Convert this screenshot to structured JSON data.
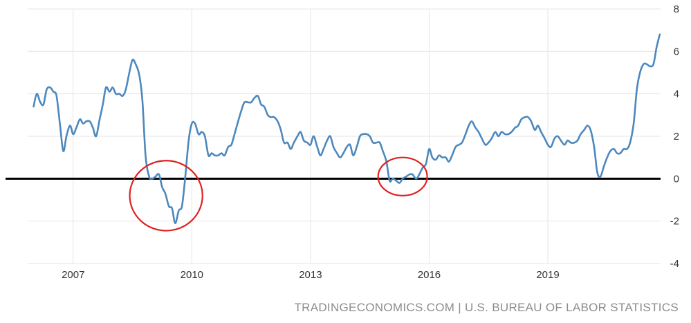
{
  "chart_data": {
    "type": "line",
    "title": "",
    "xlabel": "",
    "ylabel": "",
    "xlim": [
      2005.85,
      2021.85
    ],
    "ylim": [
      -4,
      8
    ],
    "x_ticks": [
      {
        "value": 2007,
        "label": "2007"
      },
      {
        "value": 2010,
        "label": "2010"
      },
      {
        "value": 2013,
        "label": "2013"
      },
      {
        "value": 2016,
        "label": "2016"
      },
      {
        "value": 2019,
        "label": "2019"
      }
    ],
    "y_ticks": [
      {
        "value": 8,
        "label": "8"
      },
      {
        "value": 6,
        "label": "6"
      },
      {
        "value": 4,
        "label": "4"
      },
      {
        "value": 2,
        "label": "2"
      },
      {
        "value": 0,
        "label": "0"
      },
      {
        "value": -2,
        "label": "-2"
      },
      {
        "value": -4,
        "label": "-4"
      }
    ],
    "grid": true,
    "legend": "none",
    "line_color": "#4d88bd",
    "zero_line_color": "#000000",
    "annotation_color": "#e02020",
    "series": [
      {
        "points": [
          [
            2006.0,
            3.4
          ],
          [
            2006.08,
            4.0
          ],
          [
            2006.17,
            3.6
          ],
          [
            2006.25,
            3.5
          ],
          [
            2006.33,
            4.2
          ],
          [
            2006.42,
            4.3
          ],
          [
            2006.5,
            4.1
          ],
          [
            2006.58,
            3.9
          ],
          [
            2006.67,
            2.5
          ],
          [
            2006.75,
            1.3
          ],
          [
            2006.83,
            2.0
          ],
          [
            2006.92,
            2.5
          ],
          [
            2007.0,
            2.1
          ],
          [
            2007.08,
            2.4
          ],
          [
            2007.17,
            2.8
          ],
          [
            2007.25,
            2.6
          ],
          [
            2007.33,
            2.7
          ],
          [
            2007.42,
            2.7
          ],
          [
            2007.5,
            2.4
          ],
          [
            2007.58,
            2.0
          ],
          [
            2007.67,
            2.8
          ],
          [
            2007.75,
            3.5
          ],
          [
            2007.83,
            4.3
          ],
          [
            2007.92,
            4.1
          ],
          [
            2008.0,
            4.3
          ],
          [
            2008.08,
            4.0
          ],
          [
            2008.17,
            4.0
          ],
          [
            2008.25,
            3.9
          ],
          [
            2008.33,
            4.2
          ],
          [
            2008.42,
            5.0
          ],
          [
            2008.5,
            5.6
          ],
          [
            2008.58,
            5.4
          ],
          [
            2008.67,
            4.9
          ],
          [
            2008.75,
            3.7
          ],
          [
            2008.83,
            1.1
          ],
          [
            2008.92,
            0.1
          ],
          [
            2009.0,
            0.0
          ],
          [
            2009.08,
            0.1
          ],
          [
            2009.17,
            0.2
          ],
          [
            2009.25,
            -0.4
          ],
          [
            2009.33,
            -0.7
          ],
          [
            2009.42,
            -1.3
          ],
          [
            2009.5,
            -1.4
          ],
          [
            2009.58,
            -2.1
          ],
          [
            2009.67,
            -1.5
          ],
          [
            2009.75,
            -1.3
          ],
          [
            2009.83,
            0.0
          ],
          [
            2009.92,
            1.8
          ],
          [
            2010.0,
            2.6
          ],
          [
            2010.08,
            2.6
          ],
          [
            2010.17,
            2.1
          ],
          [
            2010.25,
            2.2
          ],
          [
            2010.33,
            2.0
          ],
          [
            2010.42,
            1.1
          ],
          [
            2010.5,
            1.2
          ],
          [
            2010.58,
            1.1
          ],
          [
            2010.67,
            1.1
          ],
          [
            2010.75,
            1.2
          ],
          [
            2010.83,
            1.1
          ],
          [
            2010.92,
            1.5
          ],
          [
            2011.0,
            1.6
          ],
          [
            2011.08,
            2.1
          ],
          [
            2011.17,
            2.7
          ],
          [
            2011.25,
            3.2
          ],
          [
            2011.33,
            3.6
          ],
          [
            2011.42,
            3.6
          ],
          [
            2011.5,
            3.6
          ],
          [
            2011.58,
            3.8
          ],
          [
            2011.67,
            3.9
          ],
          [
            2011.75,
            3.5
          ],
          [
            2011.83,
            3.4
          ],
          [
            2011.92,
            3.0
          ],
          [
            2012.0,
            2.9
          ],
          [
            2012.08,
            2.9
          ],
          [
            2012.17,
            2.7
          ],
          [
            2012.25,
            2.3
          ],
          [
            2012.33,
            1.7
          ],
          [
            2012.42,
            1.7
          ],
          [
            2012.5,
            1.4
          ],
          [
            2012.58,
            1.7
          ],
          [
            2012.67,
            2.0
          ],
          [
            2012.75,
            2.2
          ],
          [
            2012.83,
            1.8
          ],
          [
            2012.92,
            1.7
          ],
          [
            2013.0,
            1.6
          ],
          [
            2013.08,
            2.0
          ],
          [
            2013.17,
            1.5
          ],
          [
            2013.25,
            1.1
          ],
          [
            2013.33,
            1.4
          ],
          [
            2013.42,
            1.8
          ],
          [
            2013.5,
            2.0
          ],
          [
            2013.58,
            1.5
          ],
          [
            2013.67,
            1.2
          ],
          [
            2013.75,
            1.0
          ],
          [
            2013.83,
            1.2
          ],
          [
            2013.92,
            1.5
          ],
          [
            2014.0,
            1.6
          ],
          [
            2014.08,
            1.1
          ],
          [
            2014.17,
            1.5
          ],
          [
            2014.25,
            2.0
          ],
          [
            2014.33,
            2.1
          ],
          [
            2014.42,
            2.1
          ],
          [
            2014.5,
            2.0
          ],
          [
            2014.58,
            1.7
          ],
          [
            2014.67,
            1.7
          ],
          [
            2014.75,
            1.7
          ],
          [
            2014.83,
            1.3
          ],
          [
            2014.92,
            0.8
          ],
          [
            2015.0,
            -0.1
          ],
          [
            2015.08,
            0.0
          ],
          [
            2015.17,
            -0.1
          ],
          [
            2015.25,
            -0.2
          ],
          [
            2015.33,
            0.0
          ],
          [
            2015.42,
            0.1
          ],
          [
            2015.5,
            0.2
          ],
          [
            2015.58,
            0.2
          ],
          [
            2015.67,
            0.0
          ],
          [
            2015.75,
            0.2
          ],
          [
            2015.83,
            0.5
          ],
          [
            2015.92,
            0.7
          ],
          [
            2016.0,
            1.4
          ],
          [
            2016.08,
            1.0
          ],
          [
            2016.17,
            0.9
          ],
          [
            2016.25,
            1.1
          ],
          [
            2016.33,
            1.0
          ],
          [
            2016.42,
            1.0
          ],
          [
            2016.5,
            0.8
          ],
          [
            2016.58,
            1.1
          ],
          [
            2016.67,
            1.5
          ],
          [
            2016.75,
            1.6
          ],
          [
            2016.83,
            1.7
          ],
          [
            2016.92,
            2.1
          ],
          [
            2017.0,
            2.5
          ],
          [
            2017.08,
            2.7
          ],
          [
            2017.17,
            2.4
          ],
          [
            2017.25,
            2.2
          ],
          [
            2017.33,
            1.9
          ],
          [
            2017.42,
            1.6
          ],
          [
            2017.5,
            1.7
          ],
          [
            2017.58,
            1.9
          ],
          [
            2017.67,
            2.2
          ],
          [
            2017.75,
            2.0
          ],
          [
            2017.83,
            2.2
          ],
          [
            2017.92,
            2.1
          ],
          [
            2018.0,
            2.1
          ],
          [
            2018.08,
            2.2
          ],
          [
            2018.17,
            2.4
          ],
          [
            2018.25,
            2.5
          ],
          [
            2018.33,
            2.8
          ],
          [
            2018.42,
            2.9
          ],
          [
            2018.5,
            2.9
          ],
          [
            2018.58,
            2.7
          ],
          [
            2018.67,
            2.3
          ],
          [
            2018.75,
            2.5
          ],
          [
            2018.83,
            2.2
          ],
          [
            2018.92,
            1.9
          ],
          [
            2019.0,
            1.6
          ],
          [
            2019.08,
            1.5
          ],
          [
            2019.17,
            1.9
          ],
          [
            2019.25,
            2.0
          ],
          [
            2019.33,
            1.8
          ],
          [
            2019.42,
            1.6
          ],
          [
            2019.5,
            1.8
          ],
          [
            2019.58,
            1.7
          ],
          [
            2019.67,
            1.7
          ],
          [
            2019.75,
            1.8
          ],
          [
            2019.83,
            2.1
          ],
          [
            2019.92,
            2.3
          ],
          [
            2020.0,
            2.5
          ],
          [
            2020.08,
            2.3
          ],
          [
            2020.17,
            1.5
          ],
          [
            2020.25,
            0.3
          ],
          [
            2020.33,
            0.1
          ],
          [
            2020.42,
            0.6
          ],
          [
            2020.5,
            1.0
          ],
          [
            2020.58,
            1.3
          ],
          [
            2020.67,
            1.4
          ],
          [
            2020.75,
            1.2
          ],
          [
            2020.83,
            1.2
          ],
          [
            2020.92,
            1.4
          ],
          [
            2021.0,
            1.4
          ],
          [
            2021.08,
            1.7
          ],
          [
            2021.17,
            2.6
          ],
          [
            2021.25,
            4.2
          ],
          [
            2021.33,
            5.0
          ],
          [
            2021.42,
            5.4
          ],
          [
            2021.5,
            5.4
          ],
          [
            2021.58,
            5.3
          ],
          [
            2021.67,
            5.4
          ],
          [
            2021.75,
            6.2
          ],
          [
            2021.83,
            6.8
          ]
        ]
      }
    ],
    "annotations": [
      {
        "type": "circle",
        "center": [
          2009.35,
          -0.8
        ],
        "rx_years": 0.92,
        "ry_units": 1.65
      },
      {
        "type": "circle",
        "center": [
          2015.33,
          0.1
        ],
        "rx_years": 0.62,
        "ry_units": 0.9
      }
    ]
  },
  "source": {
    "text": "TRADINGECONOMICS.COM | U.S. BUREAU OF LABOR STATISTICS"
  }
}
